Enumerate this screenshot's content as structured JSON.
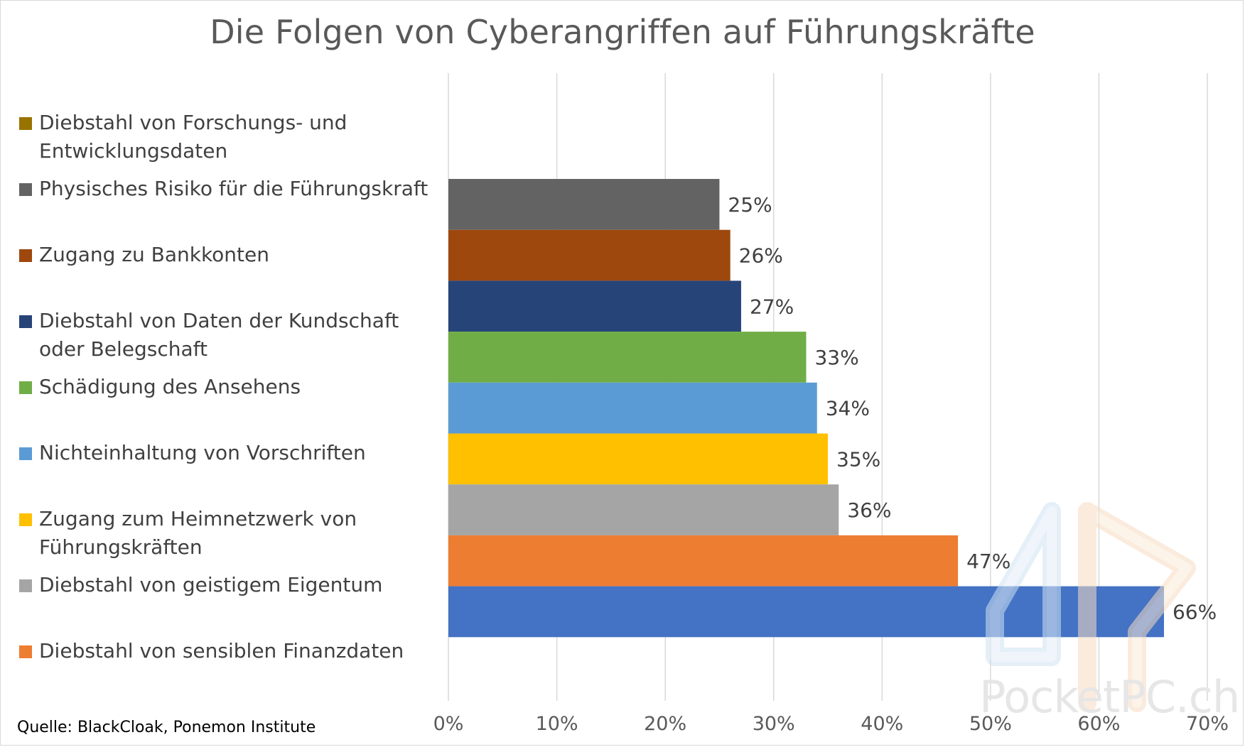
{
  "chart_data": {
    "type": "bar",
    "orientation": "horizontal",
    "title": "Die Folgen von Cyberangriffen auf Führungskräfte",
    "xlabel": "",
    "ylabel": "",
    "xlim": [
      0,
      0.7
    ],
    "x_ticks": [
      0,
      0.1,
      0.2,
      0.3,
      0.4,
      0.5,
      0.6,
      0.7
    ],
    "x_tick_labels": [
      "0%",
      "10%",
      "20%",
      "30%",
      "40%",
      "50%",
      "60%",
      "70%"
    ],
    "grid": "vertical",
    "legend_position": "left",
    "legend": [
      {
        "label": "Diebstahl von Forschungs- und Entwicklungsdaten",
        "color": "#997300"
      },
      {
        "label": "Physisches Risiko für die Führungskraft",
        "color": "#636363"
      },
      {
        "label": "Zugang zu Bankkonten",
        "color": "#9e480e"
      },
      {
        "label": "Diebstahl von Daten der Kundschaft oder Belegschaft",
        "color": "#264478"
      },
      {
        "label": "Schädigung des Ansehens",
        "color": "#70ad47"
      },
      {
        "label": "Nichteinhaltung von Vorschriften",
        "color": "#5b9bd5"
      },
      {
        "label": "Zugang zum Heimnetzwerk von Führungskräften",
        "color": "#ffc000"
      },
      {
        "label": "Diebstahl von geistigem Eigentum",
        "color": "#a5a5a5"
      },
      {
        "label": "Diebstahl von sensiblen Finanzdaten",
        "color": "#ed7d31"
      }
    ],
    "bars": [
      {
        "value": 0.25,
        "label": "25%",
        "color": "#636363"
      },
      {
        "value": 0.26,
        "label": "26%",
        "color": "#9e480e"
      },
      {
        "value": 0.27,
        "label": "27%",
        "color": "#264478"
      },
      {
        "value": 0.33,
        "label": "33%",
        "color": "#70ad47"
      },
      {
        "value": 0.34,
        "label": "34%",
        "color": "#5b9bd5"
      },
      {
        "value": 0.35,
        "label": "35%",
        "color": "#ffc000"
      },
      {
        "value": 0.36,
        "label": "36%",
        "color": "#a5a5a5"
      },
      {
        "value": 0.47,
        "label": "47%",
        "color": "#ed7d31"
      },
      {
        "value": 0.66,
        "label": "66%",
        "color": "#4472c4"
      }
    ]
  },
  "source": "Quelle: BlackCloak, Ponemon Institute",
  "watermark": "PocketPC.ch"
}
